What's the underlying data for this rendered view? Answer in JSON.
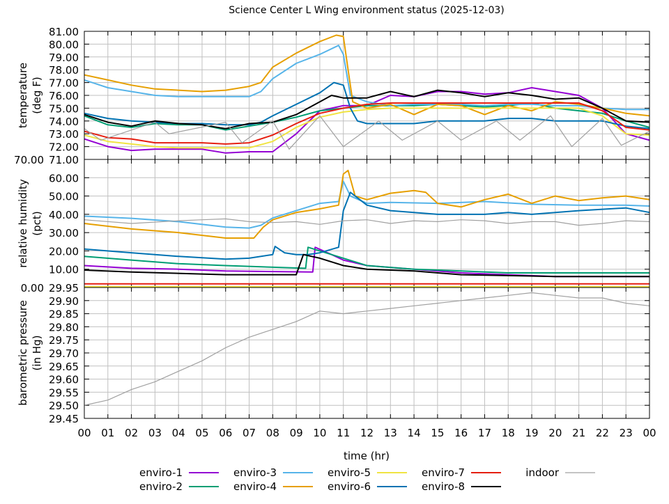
{
  "chart_data": {
    "type": "line",
    "title": "Science Center L Wing environment status (2025-12-03)",
    "xlabel": "time (hr)",
    "x_tick_labels": [
      "00",
      "01",
      "02",
      "03",
      "04",
      "05",
      "06",
      "07",
      "08",
      "09",
      "10",
      "11",
      "12",
      "13",
      "14",
      "15",
      "16",
      "17",
      "18",
      "19",
      "20",
      "21",
      "22",
      "23",
      "00"
    ],
    "xlim": [
      0,
      24
    ],
    "grid": true,
    "legend_placement": "bottom",
    "colors": {
      "enviro-1": "#9400d3",
      "enviro-2": "#009e73",
      "enviro-3": "#56b4e9",
      "enviro-4": "#e69f00",
      "enviro-5": "#f0e442",
      "enviro-6": "#0072b2",
      "enviro-7": "#e51e10",
      "enviro-8": "#000000",
      "indoor": "#a0a0a0"
    },
    "legend": [
      "enviro-1",
      "enviro-2",
      "enviro-3",
      "enviro-4",
      "enviro-5",
      "enviro-6",
      "enviro-7",
      "enviro-8",
      "indoor"
    ],
    "panels": [
      {
        "ylabel": [
          "temperature",
          "(deg F)"
        ],
        "ylim": [
          71,
          81
        ],
        "y_tick_labels": [
          "81.00",
          "80.00",
          "79.00",
          "78.00",
          "77.00",
          "76.00",
          "75.00",
          "74.00",
          "73.00",
          "72.00",
          "71.00",
          "70.00"
        ],
        "series": [
          {
            "name": "enviro-1",
            "x": [
              0,
              1,
              2,
              3,
              4,
              5,
              6,
              7,
              8,
              9,
              10,
              11,
              12,
              13,
              14,
              15,
              16,
              17,
              18,
              19,
              20,
              21,
              22,
              23,
              24
            ],
            "y": [
              72.6,
              72,
              71.7,
              71.8,
              71.8,
              71.8,
              71.5,
              71.6,
              71.6,
              73,
              74.8,
              75.2,
              75.2,
              76,
              75.9,
              76.3,
              76.3,
              76.1,
              76.2,
              76.6,
              76.3,
              76,
              75,
              73,
              72.5
            ]
          },
          {
            "name": "enviro-2",
            "x": [
              0,
              1,
              2,
              3,
              4,
              5,
              6,
              7,
              8,
              9,
              10,
              11,
              12,
              13,
              14,
              15,
              16,
              17,
              18,
              19,
              20,
              21,
              22,
              23,
              24
            ],
            "y": [
              74.4,
              73.7,
              73.5,
              73.8,
              73.7,
              73.7,
              73.3,
              73.6,
              73.9,
              74.3,
              74.8,
              75,
              75.2,
              75.2,
              75.2,
              75.3,
              75.2,
              75.1,
              75.2,
              75.4,
              75,
              74.8,
              74.6,
              74,
              73.5
            ]
          },
          {
            "name": "enviro-3",
            "x": [
              0,
              1,
              2,
              3,
              4,
              5,
              6,
              7,
              7.5,
              8,
              9,
              10,
              10.8,
              11,
              11.3,
              12,
              13,
              14,
              15,
              16,
              17,
              18,
              19,
              20,
              21,
              22,
              23,
              24
            ],
            "y": [
              77.2,
              76.6,
              76.3,
              76,
              75.9,
              75.9,
              75.9,
              75.9,
              76.3,
              77.3,
              78.5,
              79.2,
              79.9,
              79.2,
              76,
              75.5,
              75.2,
              75.3,
              75.3,
              75.3,
              75.2,
              75.3,
              75.3,
              75.2,
              75.2,
              75,
              74.9,
              74.9
            ]
          },
          {
            "name": "enviro-4",
            "x": [
              0,
              1,
              2,
              3,
              4,
              5,
              6,
              7,
              7.5,
              8,
              9,
              10,
              10.7,
              11,
              11.2,
              11.4,
              12,
              13,
              14,
              15,
              16,
              17,
              18,
              19,
              20,
              21,
              22,
              23,
              24
            ],
            "y": [
              77.6,
              77.2,
              76.8,
              76.5,
              76.4,
              76.3,
              76.4,
              76.7,
              77,
              78.2,
              79.3,
              80.2,
              80.7,
              80.6,
              78,
              75.5,
              75,
              75.3,
              74.5,
              75.3,
              75.2,
              74.5,
              75.2,
              74.8,
              75.5,
              75.3,
              75,
              74.6,
              74.4
            ]
          },
          {
            "name": "enviro-5",
            "x": [
              0,
              1,
              2,
              3,
              4,
              5,
              6,
              7,
              8,
              9,
              10,
              11,
              12,
              13,
              14,
              15,
              16,
              17,
              18,
              19,
              20,
              21,
              22,
              23,
              24
            ],
            "y": [
              72.9,
              72.4,
              72.2,
              72,
              71.9,
              71.9,
              71.9,
              71.9,
              72.4,
              73.5,
              74.3,
              74.7,
              74.9,
              75,
              75,
              75,
              75,
              75,
              75,
              75,
              75,
              75,
              74.4,
              73,
              72.9
            ]
          },
          {
            "name": "enviro-6",
            "x": [
              0,
              1,
              2,
              3,
              4,
              5,
              6,
              7,
              7.5,
              8,
              9,
              10,
              10.6,
              11,
              11.3,
              11.6,
              12,
              13,
              14,
              15,
              16,
              17,
              18,
              19,
              20,
              21,
              22,
              23,
              24
            ],
            "y": [
              74.6,
              74.2,
              74,
              73.9,
              73.8,
              73.8,
              73.7,
              73.7,
              73.9,
              74.4,
              75.3,
              76.2,
              77,
              76.8,
              75,
              74,
              73.8,
              73.8,
              73.8,
              74,
              74,
              74,
              74.2,
              74.2,
              74,
              74,
              74,
              73.6,
              73.4
            ]
          },
          {
            "name": "enviro-7",
            "x": [
              0,
              1,
              2,
              3,
              4,
              5,
              6,
              7,
              8,
              9,
              10,
              11,
              12,
              13,
              14,
              15,
              16,
              17,
              18,
              19,
              20,
              21,
              22,
              23,
              24
            ],
            "y": [
              73.2,
              72.7,
              72.6,
              72.3,
              72.3,
              72.3,
              72.2,
              72.3,
              72.9,
              73.8,
              74.6,
              75,
              75.3,
              75.4,
              75.4,
              75.4,
              75.4,
              75.4,
              75.4,
              75.4,
              75.4,
              75.4,
              74.8,
              73.5,
              73.3
            ]
          },
          {
            "name": "enviro-8",
            "x": [
              0,
              1,
              2,
              3,
              4,
              5,
              6,
              7,
              8,
              9,
              10,
              10.5,
              11,
              12,
              13,
              14,
              15,
              16,
              17,
              18,
              19,
              20,
              21,
              22,
              23,
              24
            ],
            "y": [
              74.5,
              73.9,
              73.6,
              74,
              73.8,
              73.7,
              73.4,
              73.8,
              73.9,
              74.5,
              75.5,
              76,
              75.8,
              75.8,
              76.3,
              75.9,
              76.4,
              76.2,
              75.9,
              76.2,
              76,
              75.7,
              75.8,
              75,
              74,
              73.9
            ]
          },
          {
            "name": "indoor",
            "x": [
              0,
              0.7,
              3,
              3.6,
              6,
              6.7,
              8,
              8.7,
              10,
              11,
              12.5,
              13.5,
              15,
              16,
              17.5,
              18.5,
              19.8,
              20.7,
              22,
              22.8,
              24
            ],
            "y": [
              73.4,
              72.5,
              73.9,
              73,
              73.9,
              72.3,
              74,
              71.8,
              74.4,
              72,
              74,
              72.5,
              74,
              72.5,
              74,
              72.5,
              74.4,
              72,
              74.2,
              72.1,
              73.2
            ]
          }
        ]
      },
      {
        "ylabel": [
          "relative humidity",
          "(pct)"
        ],
        "ylim": [
          0,
          70
        ],
        "y_tick_labels": [
          "60.00",
          "50.00",
          "40.00",
          "30.00",
          "20.00",
          "10.00",
          "0.00"
        ],
        "series": [
          {
            "name": "enviro-1",
            "x": [
              0,
              2,
              4,
              6,
              9.7,
              9.8,
              10.5,
              11,
              12,
              14,
              16,
              18,
              20,
              24
            ],
            "y": [
              12,
              10.5,
              10,
              9,
              8.5,
              22,
              18,
              15,
              12,
              10,
              8,
              7,
              6,
              6
            ]
          },
          {
            "name": "enviro-2",
            "x": [
              0,
              2,
              4,
              6,
              9.4,
              9.5,
              10,
              11,
              12,
              14,
              16,
              18,
              21,
              24
            ],
            "y": [
              17,
              15,
              13,
              12,
              10.5,
              22,
              20,
              16,
              12,
              10,
              9,
              8,
              8,
              8
            ]
          },
          {
            "name": "enviro-3",
            "x": [
              0,
              2,
              4,
              6,
              7,
              7.5,
              8,
              9,
              10,
              10.8,
              11,
              11.3,
              12,
              13,
              15,
              17,
              19,
              21,
              23,
              24
            ],
            "y": [
              39,
              37.8,
              36,
              33,
              32.5,
              34,
              38,
              42,
              46,
              47,
              58,
              50,
              46,
              46.5,
              46,
              47,
              45.5,
              45,
              45,
              44.5
            ]
          },
          {
            "name": "enviro-4",
            "x": [
              0,
              2,
              4,
              6,
              7.2,
              7.6,
              8,
              9,
              10,
              10.8,
              11,
              11.2,
              11.5,
              12,
              13,
              14,
              14.5,
              15,
              16,
              17,
              18,
              19,
              20,
              21,
              22,
              23,
              24
            ],
            "y": [
              35,
              32,
              30,
              27,
              27,
              33,
              37,
              41,
              43,
              45,
              62,
              64,
              50,
              48,
              51.5,
              53,
              52,
              46,
              44,
              48,
              51,
              46,
              50,
              47.5,
              49,
              50,
              48
            ]
          },
          {
            "name": "enviro-5",
            "x": [
              0,
              24
            ],
            "y": [
              0.5,
              0.5
            ]
          },
          {
            "name": "enviro-6",
            "x": [
              0,
              2,
              4,
              6,
              7,
              8,
              8.1,
              8.5,
              9,
              9.5,
              10,
              10.8,
              11,
              11.3,
              12,
              13,
              15,
              17,
              18,
              19,
              21,
              23,
              24
            ],
            "y": [
              21,
              19,
              17,
              15.5,
              16,
              18,
              22.5,
              19,
              18,
              18,
              19,
              22,
              42,
              52,
              45,
              42,
              40,
              40,
              41,
              40,
              42,
              43.5,
              41
            ]
          },
          {
            "name": "enviro-7",
            "x": [
              0,
              24
            ],
            "y": [
              2,
              2
            ]
          },
          {
            "name": "enviro-8",
            "x": [
              0,
              2,
              6,
              9,
              9.3,
              10,
              11,
              12,
              14,
              16,
              18,
              20,
              24
            ],
            "y": [
              9.5,
              8.5,
              7,
              7,
              18,
              16,
              12,
              10,
              9,
              7,
              6.5,
              6,
              6
            ]
          },
          {
            "name": "indoor",
            "x": [
              0,
              2,
              4,
              5,
              6,
              7,
              8,
              9,
              10,
              11,
              12,
              13,
              14,
              15,
              16,
              17,
              18,
              19,
              20,
              21,
              22,
              23,
              24
            ],
            "y": [
              37,
              35,
              36.5,
              37,
              37.5,
              36,
              35.5,
              36,
              34.5,
              36.5,
              37,
              35,
              36.5,
              36,
              37,
              36.5,
              35,
              36,
              36,
              34,
              35,
              36.5,
              36
            ]
          }
        ]
      },
      {
        "ylabel": [
          "barometric pressure",
          "(in Hg)"
        ],
        "ylim": [
          29.45,
          29.95
        ],
        "y_tick_labels": [
          "29.95",
          "29.90",
          "29.85",
          "29.80",
          "29.75",
          "29.70",
          "29.65",
          "29.60",
          "29.55",
          "29.50",
          "29.45"
        ],
        "series": [
          {
            "name": "indoor",
            "x": [
              0,
              1,
              2,
              3,
              4,
              5,
              6,
              7,
              8,
              9,
              10,
              11,
              12,
              13,
              14,
              15,
              16,
              17,
              18,
              19,
              20,
              21,
              22,
              23,
              24
            ],
            "y": [
              29.5,
              29.52,
              29.56,
              29.59,
              29.63,
              29.67,
              29.72,
              29.76,
              29.79,
              29.82,
              29.86,
              29.85,
              29.86,
              29.87,
              29.88,
              29.89,
              29.9,
              29.91,
              29.92,
              29.93,
              29.92,
              29.91,
              29.91,
              29.89,
              29.88
            ]
          }
        ]
      }
    ]
  }
}
